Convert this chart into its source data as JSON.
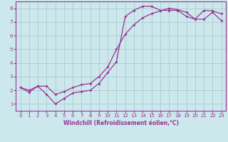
{
  "xlabel": "Windchill (Refroidissement éolien,°C)",
  "bg_color": "#cce8ec",
  "line_color": "#993399",
  "grid_color": "#aacccc",
  "xlim": [
    -0.5,
    23.5
  ],
  "ylim": [
    0.5,
    8.5
  ],
  "xticks": [
    0,
    1,
    2,
    3,
    4,
    5,
    6,
    7,
    8,
    9,
    10,
    11,
    12,
    13,
    14,
    15,
    16,
    17,
    18,
    19,
    20,
    21,
    22,
    23
  ],
  "yticks": [
    1,
    2,
    3,
    4,
    5,
    6,
    7,
    8
  ],
  "series1_x": [
    0,
    1,
    2,
    3,
    4,
    5,
    6,
    7,
    8,
    9,
    10,
    11,
    12,
    13,
    14,
    15,
    16,
    17,
    18,
    19,
    20,
    21,
    22,
    23
  ],
  "series1_y": [
    2.2,
    1.85,
    2.3,
    1.7,
    1.0,
    1.4,
    1.8,
    1.9,
    2.0,
    2.5,
    3.3,
    4.1,
    7.4,
    7.85,
    8.15,
    8.15,
    7.85,
    7.85,
    7.85,
    7.4,
    7.2,
    7.85,
    7.8,
    7.6
  ],
  "series2_x": [
    0,
    1,
    2,
    3,
    4,
    5,
    6,
    7,
    8,
    9,
    10,
    11,
    12,
    13,
    14,
    15,
    16,
    17,
    18,
    19,
    20,
    21,
    22,
    23
  ],
  "series2_y": [
    2.2,
    2.0,
    2.3,
    2.3,
    1.7,
    1.9,
    2.2,
    2.4,
    2.5,
    3.0,
    3.7,
    5.0,
    6.1,
    6.8,
    7.3,
    7.6,
    7.8,
    8.0,
    7.9,
    7.7,
    7.2,
    7.2,
    7.7,
    7.1
  ],
  "tick_fontsize": 5,
  "xlabel_fontsize": 5.5
}
